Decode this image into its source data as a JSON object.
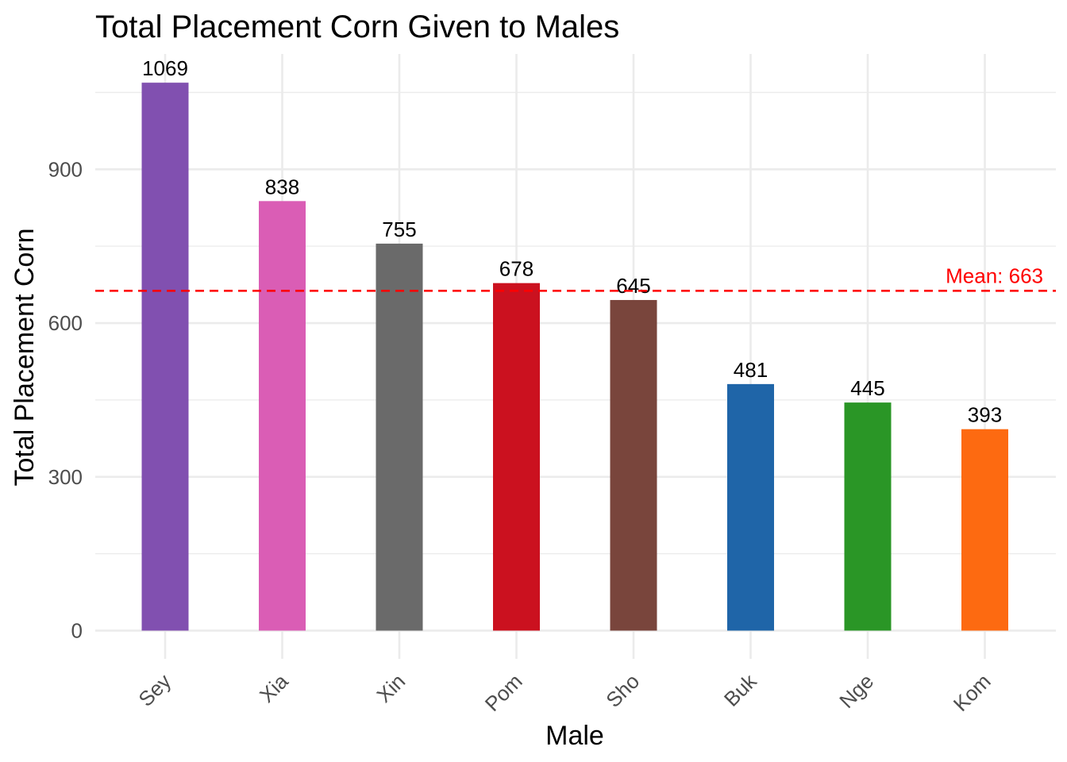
{
  "chart_data": {
    "type": "bar",
    "title": "Total Placement Corn Given to Males",
    "xlabel": "Male",
    "ylabel": "Total Placement Corn",
    "categories": [
      "Sey",
      "Xia",
      "Xin",
      "Pom",
      "Sho",
      "Buk",
      "Nge",
      "Kom"
    ],
    "values": [
      1069,
      838,
      755,
      678,
      645,
      481,
      445,
      393
    ],
    "data_labels": [
      "1069",
      "838",
      "755",
      "678",
      "645",
      "481",
      "445",
      "393"
    ],
    "colors": [
      "#8150b0",
      "#da5db5",
      "#6a6a6a",
      "#cb111f",
      "#79453c",
      "#1f65a8",
      "#2a9626",
      "#fd6a11"
    ],
    "yticks": [
      0,
      300,
      600,
      900
    ],
    "ytick_labels": [
      "0",
      "300",
      "600",
      "900"
    ],
    "ylim": [
      -55,
      1125
    ],
    "grid": true,
    "legend": "none",
    "reference_line": {
      "value": 663,
      "label": "Mean: 663",
      "style": "dashed",
      "color": "#ff0000"
    }
  }
}
